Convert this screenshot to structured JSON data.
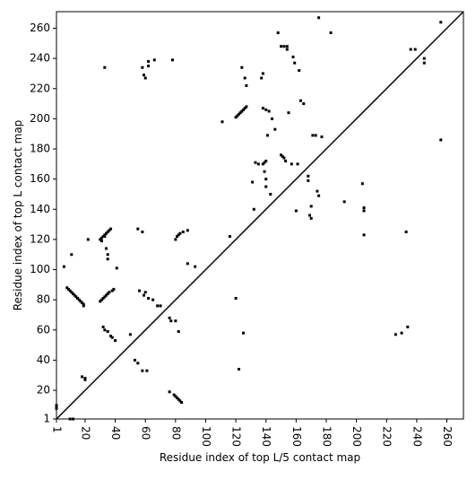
{
  "chart_data": {
    "type": "scatter",
    "xlabel": "Residue index of top L/5 contact map",
    "ylabel": "Residue index of top L contact map",
    "xlim": [
      1,
      271
    ],
    "ylim": [
      1,
      271
    ],
    "xticks": [
      1,
      20,
      40,
      60,
      80,
      100,
      120,
      140,
      160,
      180,
      200,
      220,
      240,
      260
    ],
    "yticks": [
      1,
      20,
      40,
      60,
      80,
      100,
      120,
      140,
      160,
      180,
      200,
      220,
      240,
      260
    ],
    "color": "#000000",
    "x": [
      1,
      1,
      1,
      8,
      9,
      10,
      11,
      12,
      13,
      14,
      15,
      16,
      17,
      18,
      19,
      19,
      6,
      11,
      10,
      12,
      18,
      20,
      20,
      22,
      30,
      31,
      32,
      33,
      34,
      35,
      36,
      37,
      31,
      33,
      34,
      35,
      35,
      30,
      31,
      32,
      33,
      34,
      35,
      36,
      38,
      39,
      32,
      33,
      35,
      37,
      38,
      40,
      41,
      33,
      50,
      53,
      55,
      58,
      61,
      55,
      58,
      56,
      59,
      60,
      62,
      65,
      68,
      70,
      58,
      59,
      60,
      62,
      62,
      66,
      78,
      76,
      77,
      76,
      79,
      80,
      81,
      82,
      83,
      84,
      80,
      82,
      80,
      81,
      82,
      83,
      85,
      88,
      88,
      93,
      111,
      116,
      120,
      121,
      122,
      123,
      124,
      125,
      126,
      127,
      120,
      122,
      124,
      125,
      126,
      127,
      131,
      132,
      133,
      135,
      137,
      138,
      138,
      139,
      140,
      139,
      140,
      140,
      143,
      141,
      138,
      140,
      142,
      144,
      146,
      148,
      150,
      152,
      154,
      154,
      150,
      151,
      152,
      153,
      155,
      157,
      158,
      159,
      160,
      161,
      162,
      163,
      165,
      168,
      168,
      169,
      170,
      170,
      171,
      173,
      174,
      175,
      175,
      177,
      183,
      192,
      204,
      205,
      205,
      205,
      226,
      230,
      233,
      234,
      236,
      239,
      245,
      245,
      256,
      256
    ],
    "values": [
      8,
      9,
      10,
      88,
      87,
      86,
      85,
      84,
      83,
      82,
      81,
      80,
      79,
      78,
      77,
      76,
      102,
      110,
      1,
      1,
      29,
      28,
      27,
      120,
      120,
      121,
      122,
      123,
      124,
      125,
      126,
      127,
      119,
      122,
      114,
      110,
      107,
      79,
      80,
      81,
      82,
      83,
      84,
      85,
      86,
      87,
      62,
      60,
      59,
      56,
      55,
      53,
      101,
      234,
      57,
      40,
      38,
      33,
      33,
      127,
      125,
      86,
      83,
      85,
      81,
      80,
      76,
      76,
      234,
      229,
      227,
      235,
      238,
      239,
      239,
      68,
      66,
      19,
      17,
      16,
      15,
      14,
      13,
      12,
      66,
      59,
      120,
      122,
      123,
      124,
      125,
      126,
      104,
      102,
      198,
      122,
      201,
      202,
      203,
      204,
      205,
      206,
      207,
      208,
      81,
      34,
      234,
      58,
      227,
      222,
      158,
      140,
      171,
      170,
      227,
      230,
      170,
      171,
      172,
      165,
      160,
      155,
      150,
      189,
      207,
      206,
      205,
      200,
      193,
      257,
      248,
      248,
      246,
      248,
      176,
      175,
      174,
      172,
      204,
      170,
      241,
      237,
      139,
      170,
      232,
      212,
      210,
      162,
      159,
      136,
      134,
      142,
      189,
      189,
      152,
      149,
      267,
      188,
      257,
      145,
      157,
      141,
      139,
      123,
      57,
      58,
      125,
      62,
      246,
      246,
      240,
      237,
      264,
      186
    ]
  }
}
